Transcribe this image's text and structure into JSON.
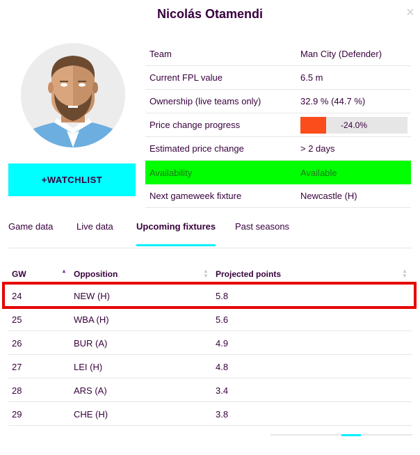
{
  "player": {
    "name": "Nicolás Otamendi"
  },
  "close_icon": "×",
  "watchlist_label": "+WATCHLIST",
  "info": {
    "team": {
      "label": "Team",
      "value": "Man City (Defender)"
    },
    "fpl_value": {
      "label": "Current FPL value",
      "value": "6.5 m"
    },
    "ownership": {
      "label": "Ownership (live teams only)",
      "value": "32.9 % (44.7 %)"
    },
    "price_progress": {
      "label": "Price change progress",
      "value": "-24.0%",
      "fill_fraction": 0.24,
      "fill_color": "#fb4c1b"
    },
    "est_price_change": {
      "label": "Estimated price change",
      "value": "> 2 days"
    },
    "availability": {
      "label": "Availability",
      "value": "Available",
      "color": "#00ff00"
    },
    "next_fixture": {
      "label": "Next gameweek fixture",
      "value": "Newcastle (H)"
    }
  },
  "tabs": [
    {
      "label": "Game data",
      "active": false
    },
    {
      "label": "Live data",
      "active": false
    },
    {
      "label": "Upcoming fixtures",
      "active": true
    },
    {
      "label": "Past seasons",
      "active": false
    }
  ],
  "fixtures": {
    "columns": [
      "GW",
      "Opposition",
      "Projected points"
    ],
    "rows": [
      {
        "gw": "24",
        "opp": "NEW (H)",
        "pts": "5.8",
        "highlighted": true
      },
      {
        "gw": "25",
        "opp": "WBA (H)",
        "pts": "5.6"
      },
      {
        "gw": "26",
        "opp": "BUR (A)",
        "pts": "4.9"
      },
      {
        "gw": "27",
        "opp": "LEI (H)",
        "pts": "4.8"
      },
      {
        "gw": "28",
        "opp": "ARS (A)",
        "pts": "3.4"
      },
      {
        "gw": "29",
        "opp": "CHE (H)",
        "pts": "3.8"
      }
    ]
  },
  "colors": {
    "accent": "#05f0ff",
    "brand": "#37003c",
    "highlight": "#e60000"
  }
}
